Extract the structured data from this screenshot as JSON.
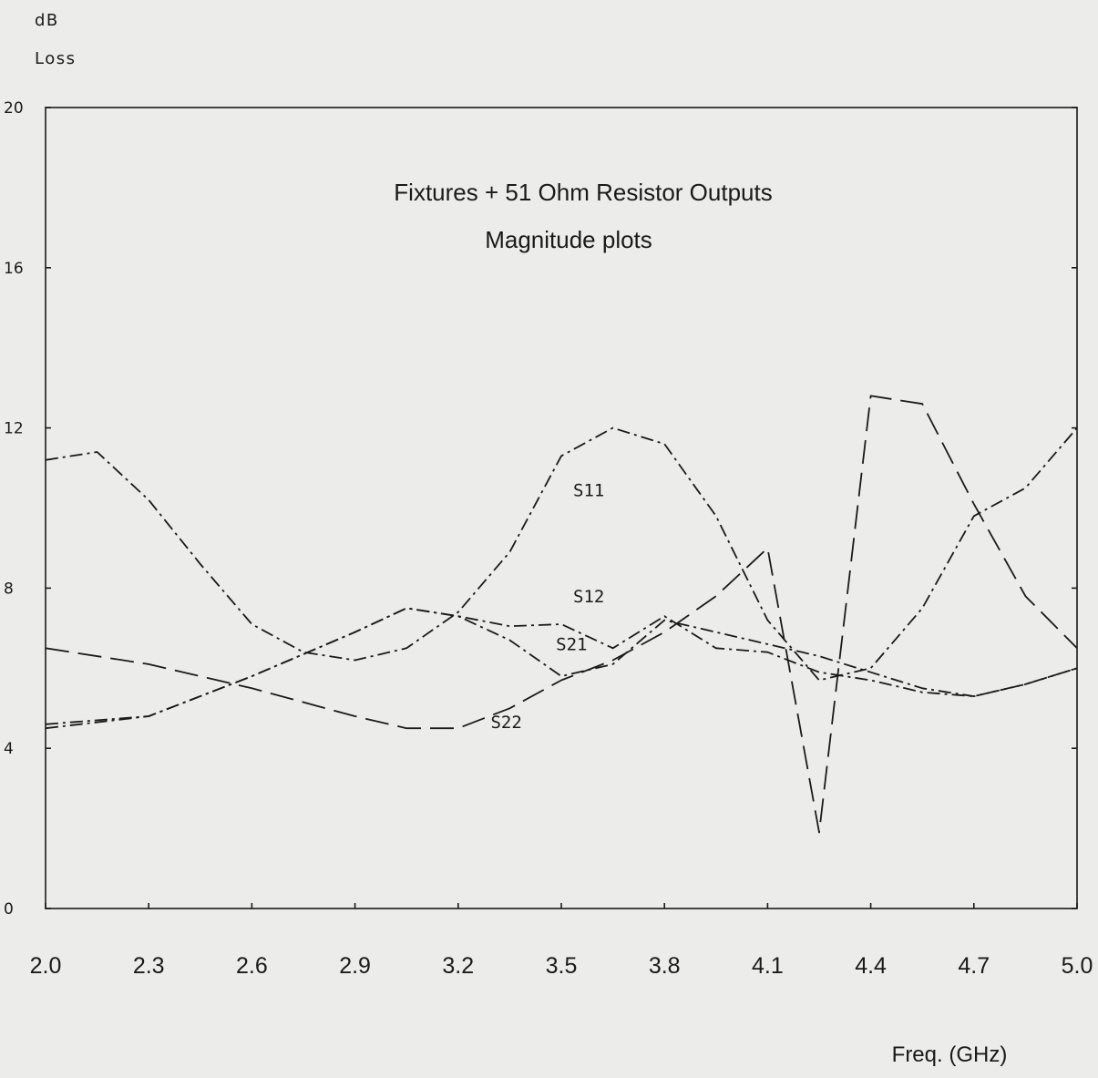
{
  "chart_data": {
    "type": "line",
    "title": "Fixtures + 51 Ohm Resistor Outputs",
    "subtitle": "Magnitude plots",
    "ylabel": "dB",
    "ylabel2": "Loss",
    "xlabel": "Freq. (GHz)",
    "xlim": [
      2.0,
      5.0
    ],
    "ylim": [
      0,
      20
    ],
    "x_ticks": [
      "2.0",
      "2.3",
      "2.6",
      "2.9",
      "3.2",
      "3.5",
      "3.8",
      "4.1",
      "4.4",
      "4.7",
      "5.0"
    ],
    "y_ticks": [
      "0",
      "4",
      "8",
      "12",
      "16",
      "20"
    ],
    "grid": false,
    "series": [
      {
        "name": "S11",
        "style": "dashdot",
        "points": [
          [
            2.0,
            11.2
          ],
          [
            2.15,
            11.4
          ],
          [
            2.3,
            10.2
          ],
          [
            2.45,
            8.6
          ],
          [
            2.6,
            7.1
          ],
          [
            2.75,
            6.4
          ],
          [
            2.9,
            6.2
          ],
          [
            3.05,
            6.5
          ],
          [
            3.2,
            7.4
          ],
          [
            3.35,
            8.9
          ],
          [
            3.5,
            11.3
          ],
          [
            3.65,
            12.0
          ],
          [
            3.8,
            11.6
          ],
          [
            3.95,
            9.8
          ],
          [
            4.1,
            7.2
          ],
          [
            4.25,
            5.7
          ],
          [
            4.4,
            6.0
          ],
          [
            4.55,
            7.5
          ],
          [
            4.7,
            9.8
          ],
          [
            4.85,
            10.5
          ],
          [
            5.0,
            12.0
          ]
        ]
      },
      {
        "name": "S12",
        "style": "dashdot",
        "points": [
          [
            2.0,
            4.6
          ],
          [
            2.3,
            4.8
          ],
          [
            2.6,
            5.8
          ],
          [
            2.9,
            6.9
          ],
          [
            3.05,
            7.5
          ],
          [
            3.2,
            7.3
          ],
          [
            3.35,
            7.05
          ],
          [
            3.5,
            7.1
          ],
          [
            3.65,
            6.5
          ],
          [
            3.8,
            7.3
          ],
          [
            3.95,
            6.5
          ],
          [
            4.1,
            6.4
          ],
          [
            4.25,
            5.9
          ],
          [
            4.4,
            5.7
          ],
          [
            4.55,
            5.4
          ],
          [
            4.7,
            5.3
          ],
          [
            4.85,
            5.6
          ],
          [
            5.0,
            6.0
          ]
        ]
      },
      {
        "name": "S21",
        "style": "dashdot",
        "points": [
          [
            2.0,
            4.5
          ],
          [
            2.3,
            4.8
          ],
          [
            2.6,
            5.8
          ],
          [
            2.9,
            6.9
          ],
          [
            3.05,
            7.5
          ],
          [
            3.2,
            7.3
          ],
          [
            3.35,
            6.7
          ],
          [
            3.5,
            5.8
          ],
          [
            3.65,
            6.1
          ],
          [
            3.8,
            7.2
          ],
          [
            3.95,
            6.9
          ],
          [
            4.1,
            6.6
          ],
          [
            4.25,
            6.3
          ],
          [
            4.4,
            5.9
          ],
          [
            4.55,
            5.5
          ],
          [
            4.7,
            5.3
          ],
          [
            4.85,
            5.6
          ],
          [
            5.0,
            6.0
          ]
        ]
      },
      {
        "name": "S22",
        "style": "dashed",
        "points": [
          [
            2.0,
            6.5
          ],
          [
            2.3,
            6.1
          ],
          [
            2.6,
            5.5
          ],
          [
            2.9,
            4.8
          ],
          [
            3.05,
            4.5
          ],
          [
            3.2,
            4.5
          ],
          [
            3.35,
            5.0
          ],
          [
            3.5,
            5.7
          ],
          [
            3.65,
            6.2
          ],
          [
            3.8,
            6.9
          ],
          [
            3.95,
            7.8
          ],
          [
            4.1,
            9.0
          ],
          [
            4.25,
            1.9
          ],
          [
            4.4,
            12.8
          ],
          [
            4.55,
            12.6
          ],
          [
            4.7,
            10.1
          ],
          [
            4.85,
            7.8
          ],
          [
            5.0,
            6.5
          ]
        ]
      }
    ]
  }
}
